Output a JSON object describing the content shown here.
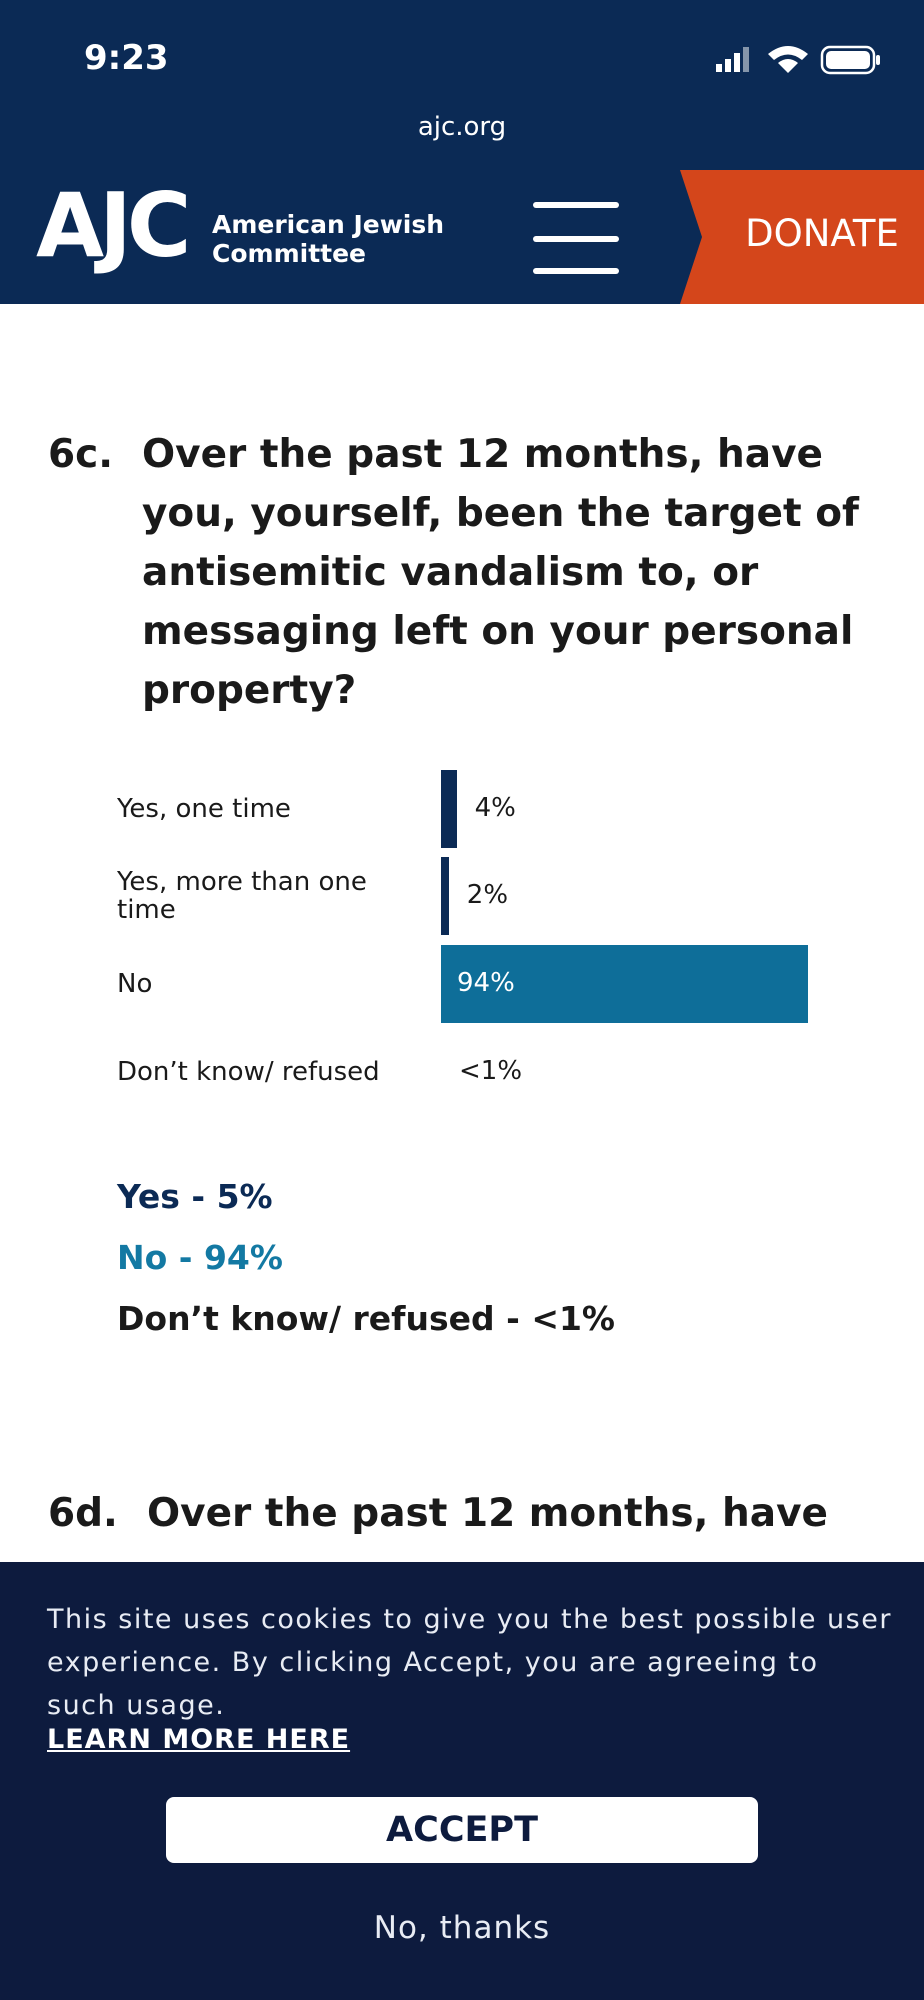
{
  "status_bar": {
    "time": "9:23",
    "url": "ajc.org"
  },
  "header": {
    "logo": "AJC",
    "org_name_line1": "American Jewish",
    "org_name_line2": "Committee",
    "donate": "DONATE"
  },
  "questions": [
    {
      "number": "6c.",
      "text": "Over the past 12 months, have you, yourself, been the target of antisemitic vandalism to, or messaging left on your personal property?"
    },
    {
      "number": "6d.",
      "text": "Over the past 12 months, have"
    }
  ],
  "chart": {
    "type": "bar",
    "categories": [
      "Yes, one time",
      "Yes, more than one time",
      "No",
      "Don’t know/ refused"
    ],
    "values": [
      4,
      2,
      94,
      null
    ],
    "value_labels": [
      "4%",
      "2%",
      "94%",
      "<1%"
    ],
    "colors": [
      "#0b2a55",
      "#0b2a55",
      "#0e6e99",
      "#0b2a55"
    ]
  },
  "summary": [
    "Yes - 5%",
    "No - 94%",
    "Don’t know/ refused - <1%"
  ],
  "cookie_banner": {
    "text": "This site uses cookies to give you the best possible user experience.  By clicking Accept, you are agreeing to such usage.",
    "link": "LEARN MORE HERE",
    "accept": "ACCEPT",
    "decline": "No, thanks"
  }
}
